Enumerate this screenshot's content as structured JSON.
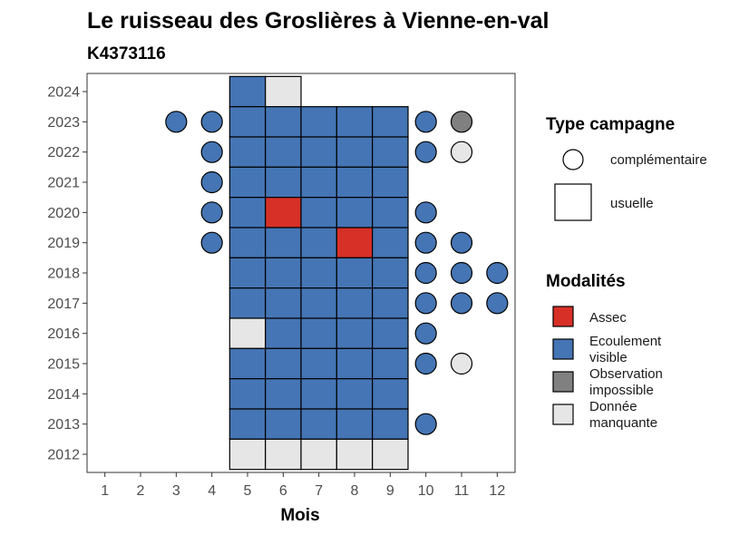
{
  "chart_data": {
    "type": "heatmap",
    "title": "Le ruisseau des Groslières à Vienne-en-val",
    "subtitle": "K4373116",
    "xlabel": "Mois",
    "ylabel": "",
    "x_ticks": [
      "1",
      "2",
      "3",
      "4",
      "5",
      "6",
      "7",
      "8",
      "9",
      "10",
      "11",
      "12"
    ],
    "y_ticks": [
      "2012",
      "2013",
      "2014",
      "2015",
      "2016",
      "2017",
      "2018",
      "2019",
      "2020",
      "2021",
      "2022",
      "2023",
      "2024"
    ],
    "xlim": [
      0.5,
      12.5
    ],
    "ylim": [
      2011.4,
      2024.6
    ],
    "colors": {
      "Assec": "#d73027",
      "Ecoulement visible": "#4575b4",
      "Observation impossible": "#808080",
      "Donnée manquante": "#e6e6e6"
    },
    "legend_type": {
      "title": "Type campagne",
      "items": [
        "complémentaire",
        "usuelle"
      ]
    },
    "legend_modalites": {
      "title": "Modalités",
      "items": [
        {
          "key": "Assec",
          "lines": [
            "Assec"
          ]
        },
        {
          "key": "Ecoulement visible",
          "lines": [
            "Ecoulement",
            "visible"
          ]
        },
        {
          "key": "Observation impossible",
          "lines": [
            "Observation",
            "impossible"
          ]
        },
        {
          "key": "Donnée manquante",
          "lines": [
            "Donnée",
            "manquante"
          ]
        }
      ]
    },
    "usuelle": [
      {
        "year": 2024,
        "month": 5,
        "value": "Ecoulement visible"
      },
      {
        "year": 2024,
        "month": 6,
        "value": "Donnée manquante"
      },
      {
        "year": 2023,
        "month": 5,
        "value": "Ecoulement visible"
      },
      {
        "year": 2023,
        "month": 6,
        "value": "Ecoulement visible"
      },
      {
        "year": 2023,
        "month": 7,
        "value": "Ecoulement visible"
      },
      {
        "year": 2023,
        "month": 8,
        "value": "Ecoulement visible"
      },
      {
        "year": 2023,
        "month": 9,
        "value": "Ecoulement visible"
      },
      {
        "year": 2022,
        "month": 5,
        "value": "Ecoulement visible"
      },
      {
        "year": 2022,
        "month": 6,
        "value": "Ecoulement visible"
      },
      {
        "year": 2022,
        "month": 7,
        "value": "Ecoulement visible"
      },
      {
        "year": 2022,
        "month": 8,
        "value": "Ecoulement visible"
      },
      {
        "year": 2022,
        "month": 9,
        "value": "Ecoulement visible"
      },
      {
        "year": 2021,
        "month": 5,
        "value": "Ecoulement visible"
      },
      {
        "year": 2021,
        "month": 6,
        "value": "Ecoulement visible"
      },
      {
        "year": 2021,
        "month": 7,
        "value": "Ecoulement visible"
      },
      {
        "year": 2021,
        "month": 8,
        "value": "Ecoulement visible"
      },
      {
        "year": 2021,
        "month": 9,
        "value": "Ecoulement visible"
      },
      {
        "year": 2020,
        "month": 5,
        "value": "Ecoulement visible"
      },
      {
        "year": 2020,
        "month": 6,
        "value": "Assec"
      },
      {
        "year": 2020,
        "month": 7,
        "value": "Ecoulement visible"
      },
      {
        "year": 2020,
        "month": 8,
        "value": "Ecoulement visible"
      },
      {
        "year": 2020,
        "month": 9,
        "value": "Ecoulement visible"
      },
      {
        "year": 2019,
        "month": 5,
        "value": "Ecoulement visible"
      },
      {
        "year": 2019,
        "month": 6,
        "value": "Ecoulement visible"
      },
      {
        "year": 2019,
        "month": 7,
        "value": "Ecoulement visible"
      },
      {
        "year": 2019,
        "month": 8,
        "value": "Assec"
      },
      {
        "year": 2019,
        "month": 9,
        "value": "Ecoulement visible"
      },
      {
        "year": 2018,
        "month": 5,
        "value": "Ecoulement visible"
      },
      {
        "year": 2018,
        "month": 6,
        "value": "Ecoulement visible"
      },
      {
        "year": 2018,
        "month": 7,
        "value": "Ecoulement visible"
      },
      {
        "year": 2018,
        "month": 8,
        "value": "Ecoulement visible"
      },
      {
        "year": 2018,
        "month": 9,
        "value": "Ecoulement visible"
      },
      {
        "year": 2017,
        "month": 5,
        "value": "Ecoulement visible"
      },
      {
        "year": 2017,
        "month": 6,
        "value": "Ecoulement visible"
      },
      {
        "year": 2017,
        "month": 7,
        "value": "Ecoulement visible"
      },
      {
        "year": 2017,
        "month": 8,
        "value": "Ecoulement visible"
      },
      {
        "year": 2017,
        "month": 9,
        "value": "Ecoulement visible"
      },
      {
        "year": 2016,
        "month": 5,
        "value": "Donnée manquante"
      },
      {
        "year": 2016,
        "month": 6,
        "value": "Ecoulement visible"
      },
      {
        "year": 2016,
        "month": 7,
        "value": "Ecoulement visible"
      },
      {
        "year": 2016,
        "month": 8,
        "value": "Ecoulement visible"
      },
      {
        "year": 2016,
        "month": 9,
        "value": "Ecoulement visible"
      },
      {
        "year": 2015,
        "month": 5,
        "value": "Ecoulement visible"
      },
      {
        "year": 2015,
        "month": 6,
        "value": "Ecoulement visible"
      },
      {
        "year": 2015,
        "month": 7,
        "value": "Ecoulement visible"
      },
      {
        "year": 2015,
        "month": 8,
        "value": "Ecoulement visible"
      },
      {
        "year": 2015,
        "month": 9,
        "value": "Ecoulement visible"
      },
      {
        "year": 2014,
        "month": 5,
        "value": "Ecoulement visible"
      },
      {
        "year": 2014,
        "month": 6,
        "value": "Ecoulement visible"
      },
      {
        "year": 2014,
        "month": 7,
        "value": "Ecoulement visible"
      },
      {
        "year": 2014,
        "month": 8,
        "value": "Ecoulement visible"
      },
      {
        "year": 2014,
        "month": 9,
        "value": "Ecoulement visible"
      },
      {
        "year": 2013,
        "month": 5,
        "value": "Ecoulement visible"
      },
      {
        "year": 2013,
        "month": 6,
        "value": "Ecoulement visible"
      },
      {
        "year": 2013,
        "month": 7,
        "value": "Ecoulement visible"
      },
      {
        "year": 2013,
        "month": 8,
        "value": "Ecoulement visible"
      },
      {
        "year": 2013,
        "month": 9,
        "value": "Ecoulement visible"
      },
      {
        "year": 2012,
        "month": 5,
        "value": "Donnée manquante"
      },
      {
        "year": 2012,
        "month": 6,
        "value": "Donnée manquante"
      },
      {
        "year": 2012,
        "month": 7,
        "value": "Donnée manquante"
      },
      {
        "year": 2012,
        "month": 8,
        "value": "Donnée manquante"
      },
      {
        "year": 2012,
        "month": 9,
        "value": "Donnée manquante"
      }
    ],
    "complementaire": [
      {
        "year": 2023,
        "month": 3,
        "value": "Ecoulement visible"
      },
      {
        "year": 2023,
        "month": 4,
        "value": "Ecoulement visible"
      },
      {
        "year": 2023,
        "month": 10,
        "value": "Ecoulement visible"
      },
      {
        "year": 2023,
        "month": 11,
        "value": "Observation impossible"
      },
      {
        "year": 2022,
        "month": 4,
        "value": "Ecoulement visible"
      },
      {
        "year": 2022,
        "month": 10,
        "value": "Ecoulement visible"
      },
      {
        "year": 2022,
        "month": 11,
        "value": "Donnée manquante"
      },
      {
        "year": 2021,
        "month": 4,
        "value": "Ecoulement visible"
      },
      {
        "year": 2020,
        "month": 4,
        "value": "Ecoulement visible"
      },
      {
        "year": 2020,
        "month": 10,
        "value": "Ecoulement visible"
      },
      {
        "year": 2019,
        "month": 4,
        "value": "Ecoulement visible"
      },
      {
        "year": 2019,
        "month": 10,
        "value": "Ecoulement visible"
      },
      {
        "year": 2019,
        "month": 11,
        "value": "Ecoulement visible"
      },
      {
        "year": 2018,
        "month": 10,
        "value": "Ecoulement visible"
      },
      {
        "year": 2018,
        "month": 11,
        "value": "Ecoulement visible"
      },
      {
        "year": 2018,
        "month": 12,
        "value": "Ecoulement visible"
      },
      {
        "year": 2017,
        "month": 10,
        "value": "Ecoulement visible"
      },
      {
        "year": 2017,
        "month": 11,
        "value": "Ecoulement visible"
      },
      {
        "year": 2017,
        "month": 12,
        "value": "Ecoulement visible"
      },
      {
        "year": 2016,
        "month": 10,
        "value": "Ecoulement visible"
      },
      {
        "year": 2015,
        "month": 10,
        "value": "Ecoulement visible"
      },
      {
        "year": 2015,
        "month": 11,
        "value": "Donnée manquante"
      },
      {
        "year": 2013,
        "month": 10,
        "value": "Ecoulement visible"
      }
    ]
  }
}
